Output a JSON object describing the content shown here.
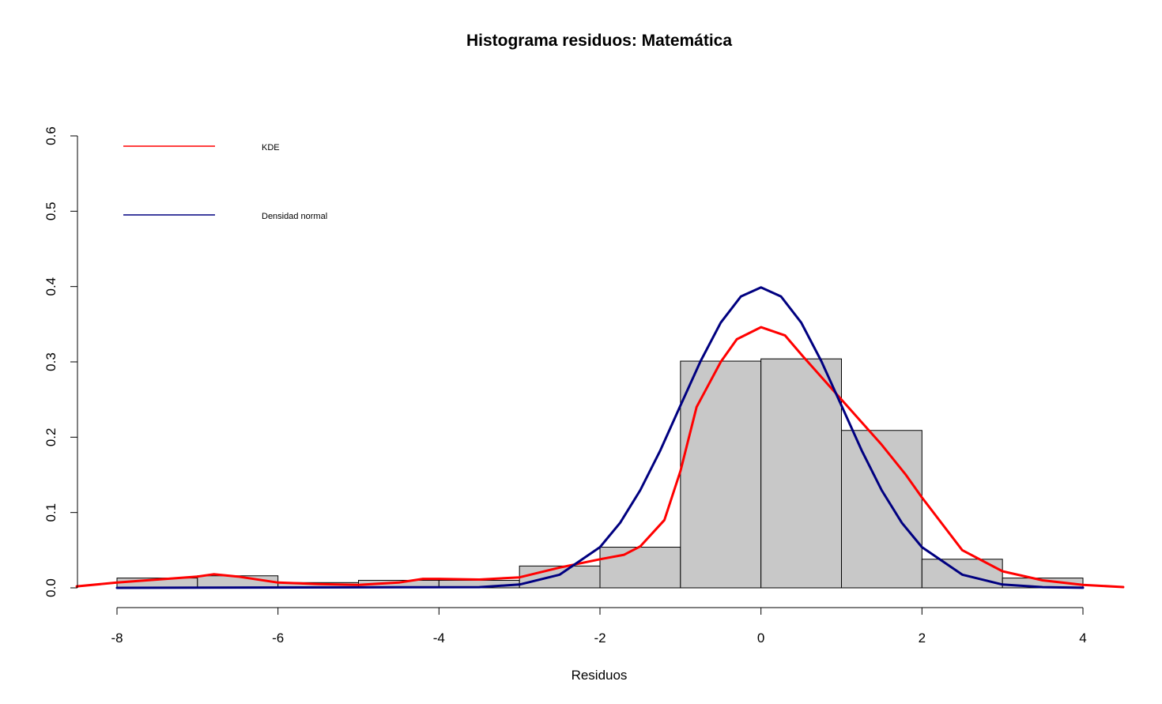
{
  "chart_data": {
    "type": "bar",
    "title": "Histograma residuos: Matemática",
    "xlabel": "Residuos",
    "ylabel": "",
    "xlim": [
      -8,
      4
    ],
    "ylim": [
      0,
      0.6
    ],
    "x_ticks": [
      "-8",
      "-6",
      "-4",
      "-2",
      "0",
      "2",
      "4"
    ],
    "x_tick_values": [
      -8,
      -6,
      -4,
      -2,
      0,
      2,
      4
    ],
    "y_ticks": [
      "0.0",
      "0.1",
      "0.2",
      "0.3",
      "0.4",
      "0.5",
      "0.6"
    ],
    "y_tick_values": [
      0,
      0.1,
      0.2,
      0.3,
      0.4,
      0.5,
      0.6
    ],
    "bins": [
      {
        "from": -8,
        "to": -7,
        "density": 0.013
      },
      {
        "from": -7,
        "to": -6,
        "density": 0.016
      },
      {
        "from": -6,
        "to": -5,
        "density": 0.007
      },
      {
        "from": -5,
        "to": -4,
        "density": 0.01
      },
      {
        "from": -4,
        "to": -3,
        "density": 0.01
      },
      {
        "from": -3,
        "to": -2,
        "density": 0.029
      },
      {
        "from": -2,
        "to": -1,
        "density": 0.054
      },
      {
        "from": -1,
        "to": 0,
        "density": 0.301
      },
      {
        "from": 0,
        "to": 1,
        "density": 0.304
      },
      {
        "from": 1,
        "to": 2,
        "density": 0.209
      },
      {
        "from": 2,
        "to": 3,
        "density": 0.038
      },
      {
        "from": 3,
        "to": 4,
        "density": 0.013
      }
    ],
    "series": [
      {
        "name": "KDE",
        "color": "#ff0000",
        "x": [
          -8.5,
          -8,
          -7.5,
          -7,
          -6.8,
          -6.5,
          -6,
          -5.5,
          -5,
          -4.5,
          -4.2,
          -4,
          -3.5,
          -3,
          -2.5,
          -2,
          -1.7,
          -1.5,
          -1.2,
          -1,
          -0.8,
          -0.5,
          -0.3,
          0,
          0.3,
          0.5,
          1,
          1.5,
          1.8,
          2,
          2.5,
          3,
          3.5,
          4,
          4.5
        ],
        "y": [
          0.002,
          0.007,
          0.011,
          0.015,
          0.018,
          0.015,
          0.007,
          0.005,
          0.004,
          0.007,
          0.012,
          0.012,
          0.011,
          0.014,
          0.027,
          0.038,
          0.044,
          0.055,
          0.09,
          0.155,
          0.24,
          0.3,
          0.33,
          0.346,
          0.335,
          0.31,
          0.25,
          0.19,
          0.15,
          0.12,
          0.05,
          0.022,
          0.01,
          0.004,
          0.001
        ]
      },
      {
        "name": "Densidad normal",
        "color": "#000080",
        "x": [
          -8,
          -3.5,
          -3,
          -2.5,
          -2,
          -1.75,
          -1.5,
          -1.25,
          -1,
          -0.75,
          -0.5,
          -0.25,
          0,
          0.25,
          0.5,
          0.75,
          1,
          1.25,
          1.5,
          1.75,
          2,
          2.5,
          3,
          3.5,
          4
        ],
        "y": [
          0,
          0.0009,
          0.0044,
          0.0175,
          0.054,
          0.0863,
          0.1295,
          0.1826,
          0.242,
          0.3011,
          0.3521,
          0.3867,
          0.3989,
          0.3867,
          0.3521,
          0.3011,
          0.242,
          0.1826,
          0.1295,
          0.0863,
          0.054,
          0.0175,
          0.0044,
          0.0009,
          0.0001
        ]
      }
    ],
    "legend": {
      "placement": "top-left",
      "entries": [
        {
          "label": "KDE",
          "color": "#ff0000"
        },
        {
          "label": "Densidad normal",
          "color": "#000080"
        }
      ]
    }
  }
}
